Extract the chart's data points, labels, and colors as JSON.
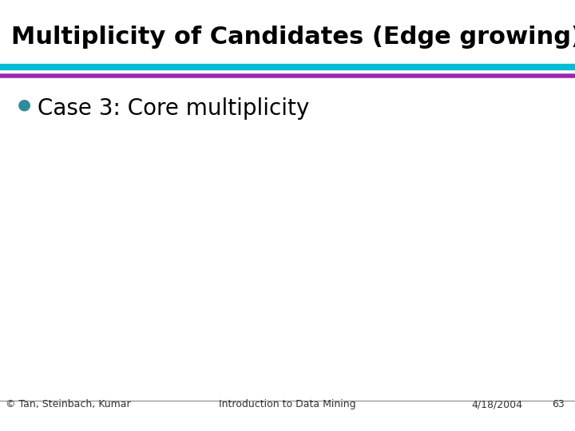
{
  "title": "Multiplicity of Candidates (Edge growing)",
  "title_color": "#000000",
  "title_fontsize": 22,
  "title_bold": true,
  "bg_color": "#ffffff",
  "line1_color": "#00bcd4",
  "line2_color": "#9c27b0",
  "bullet_color": "#2e8b9a",
  "bullet_text": "Case 3: Core multiplicity",
  "bullet_fontsize": 20,
  "footer_left": "© Tan, Steinbach, Kumar",
  "footer_center": "Introduction to Data Mining",
  "footer_right_date": "4/18/2004",
  "footer_right_page": "63",
  "footer_fontsize": 9
}
